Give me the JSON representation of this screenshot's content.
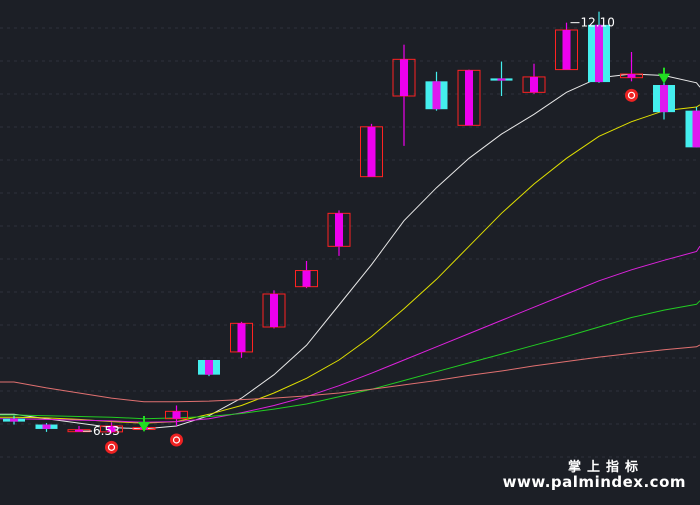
{
  "chart_data": {
    "type": "candlestick",
    "title": "",
    "xlabel": "",
    "ylabel": "",
    "ylim": [
      6.0,
      12.3
    ],
    "annotations": [
      {
        "text": "6.53",
        "index": 2,
        "value": 6.53
      },
      {
        "text": "12.10",
        "index": 17,
        "value": 12.1
      }
    ],
    "candles": [
      {
        "o": 6.7,
        "h": 6.74,
        "l": 6.62,
        "c": 6.66
      },
      {
        "o": 6.62,
        "h": 6.64,
        "l": 6.52,
        "c": 6.56
      },
      {
        "o": 6.55,
        "h": 6.6,
        "l": 6.53,
        "c": 6.55
      },
      {
        "o": 6.52,
        "h": 6.65,
        "l": 6.5,
        "c": 6.6
      },
      {
        "o": 6.58,
        "h": 6.6,
        "l": 6.56,
        "c": 6.58
      },
      {
        "o": 6.7,
        "h": 6.88,
        "l": 6.6,
        "c": 6.8
      },
      {
        "o": 7.5,
        "h": 7.5,
        "l": 7.28,
        "c": 7.3
      },
      {
        "o": 7.61,
        "h": 8.02,
        "l": 7.53,
        "c": 8.0
      },
      {
        "o": 7.95,
        "h": 8.45,
        "l": 7.93,
        "c": 8.4
      },
      {
        "o": 8.5,
        "h": 8.85,
        "l": 8.48,
        "c": 8.72
      },
      {
        "o": 9.05,
        "h": 9.54,
        "l": 8.92,
        "c": 9.5
      },
      {
        "o": 10.0,
        "h": 10.72,
        "l": 10.0,
        "c": 10.68
      },
      {
        "o": 11.1,
        "h": 11.8,
        "l": 10.42,
        "c": 11.6
      },
      {
        "o": 11.3,
        "h": 11.43,
        "l": 10.9,
        "c": 10.92
      },
      {
        "o": 10.7,
        "h": 11.46,
        "l": 10.7,
        "c": 11.45
      },
      {
        "o": 11.34,
        "h": 11.57,
        "l": 11.1,
        "c": 11.31
      },
      {
        "o": 11.15,
        "h": 11.54,
        "l": 11.13,
        "c": 11.36
      },
      {
        "o": 11.46,
        "h": 12.1,
        "l": 11.46,
        "c": 12.0
      },
      {
        "o": 12.07,
        "h": 12.25,
        "l": 11.28,
        "c": 11.29
      },
      {
        "o": 11.35,
        "h": 11.7,
        "l": 11.3,
        "c": 11.4
      },
      {
        "o": 11.25,
        "h": 11.35,
        "l": 10.78,
        "c": 10.88
      },
      {
        "o": 10.9,
        "h": 10.95,
        "l": 10.4,
        "c": 10.4
      }
    ],
    "markers": [
      {
        "index": 3,
        "shape": "circle",
        "color": "#ee2222"
      },
      {
        "index": 4,
        "shape": "arrow-down",
        "color": "#22dd22"
      },
      {
        "index": 5,
        "shape": "circle",
        "color": "#ee2222"
      },
      {
        "index": 19,
        "shape": "circle",
        "color": "#ee2222"
      },
      {
        "index": 20,
        "shape": "arrow-down",
        "color": "#22dd22"
      }
    ],
    "series": [
      {
        "color": "#e8e8e8",
        "values": [
          6.76,
          6.7,
          6.64,
          6.58,
          6.56,
          6.6,
          6.74,
          6.98,
          7.3,
          7.7,
          8.25,
          8.8,
          9.4,
          9.85,
          10.25,
          10.58,
          10.85,
          11.15,
          11.35,
          11.4,
          11.38,
          11.28
        ]
      },
      {
        "color": "#e0e000",
        "values": [
          6.72,
          6.71,
          6.69,
          6.66,
          6.64,
          6.66,
          6.76,
          6.88,
          7.05,
          7.25,
          7.5,
          7.82,
          8.2,
          8.6,
          9.05,
          9.5,
          9.9,
          10.25,
          10.55,
          10.75,
          10.9,
          10.95
        ]
      },
      {
        "color": "#dd22dd",
        "values": [
          6.7,
          6.69,
          6.68,
          6.67,
          6.65,
          6.66,
          6.7,
          6.78,
          6.88,
          7.0,
          7.15,
          7.32,
          7.5,
          7.68,
          7.86,
          8.04,
          8.22,
          8.4,
          8.58,
          8.73,
          8.86,
          8.98
        ]
      },
      {
        "color": "#22cc22",
        "values": [
          6.75,
          6.74,
          6.73,
          6.72,
          6.7,
          6.71,
          6.73,
          6.77,
          6.83,
          6.9,
          7.0,
          7.1,
          7.22,
          7.34,
          7.46,
          7.58,
          7.7,
          7.82,
          7.95,
          8.08,
          8.18,
          8.26
        ]
      },
      {
        "color": "#e07070",
        "values": [
          7.2,
          7.12,
          7.05,
          6.98,
          6.93,
          6.93,
          6.94,
          6.96,
          6.98,
          7.01,
          7.05,
          7.1,
          7.16,
          7.22,
          7.29,
          7.35,
          7.42,
          7.48,
          7.54,
          7.59,
          7.64,
          7.68
        ]
      }
    ]
  },
  "watermark": {
    "line1": "掌上指标",
    "line2": "www.palmindex.com"
  },
  "colors": {
    "up": "#ff2222",
    "up_body": "#ee00ee",
    "down_body": "#44eeee",
    "background": "#1c1f26"
  }
}
